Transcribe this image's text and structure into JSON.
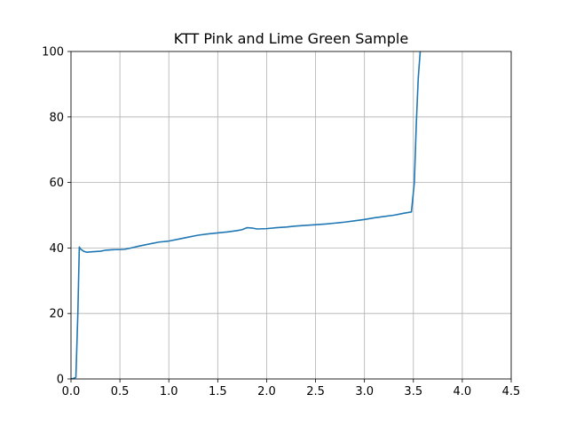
{
  "chart_data": {
    "type": "line",
    "title": "KTT Pink and Lime Green Sample",
    "xlabel": "",
    "ylabel": "",
    "xlim": [
      0,
      4.5
    ],
    "ylim": [
      0,
      100
    ],
    "grid": true,
    "x_ticks": [
      0.0,
      0.5,
      1.0,
      1.5,
      2.0,
      2.5,
      3.0,
      3.5,
      4.0,
      4.5
    ],
    "x_tick_labels": [
      "0.0",
      "0.5",
      "1.0",
      "1.5",
      "2.0",
      "2.5",
      "3.0",
      "3.5",
      "4.0",
      "4.5"
    ],
    "y_ticks": [
      0,
      20,
      40,
      60,
      80,
      100
    ],
    "y_tick_labels": [
      "0",
      "20",
      "40",
      "60",
      "80",
      "100"
    ],
    "line_color": "#1f77b4",
    "series": [
      {
        "x": [
          0.0,
          0.03,
          0.05,
          0.07,
          0.085,
          0.1,
          0.13,
          0.16,
          0.2,
          0.25,
          0.3,
          0.35,
          0.4,
          0.45,
          0.5,
          0.55,
          0.6,
          0.7,
          0.8,
          0.9,
          1.0,
          1.1,
          1.2,
          1.3,
          1.4,
          1.5,
          1.6,
          1.7,
          1.75,
          1.8,
          1.85,
          1.9,
          2.0,
          2.1,
          2.2,
          2.3,
          2.4,
          2.5,
          2.6,
          2.7,
          2.8,
          2.9,
          3.0,
          3.1,
          3.2,
          3.3,
          3.4,
          3.48,
          3.51,
          3.53,
          3.55,
          3.57
        ],
        "y": [
          0.0,
          0.2,
          0.5,
          20.0,
          40.3,
          39.6,
          39.0,
          38.7,
          38.8,
          38.9,
          39.0,
          39.3,
          39.4,
          39.5,
          39.5,
          39.6,
          39.9,
          40.6,
          41.2,
          41.8,
          42.1,
          42.7,
          43.3,
          43.9,
          44.3,
          44.6,
          44.9,
          45.3,
          45.6,
          46.2,
          46.1,
          45.8,
          45.9,
          46.2,
          46.4,
          46.7,
          46.9,
          47.1,
          47.3,
          47.6,
          47.9,
          48.3,
          48.7,
          49.2,
          49.6,
          50.0,
          50.6,
          51.0,
          60.0,
          78.0,
          92.0,
          100.0
        ]
      }
    ]
  }
}
